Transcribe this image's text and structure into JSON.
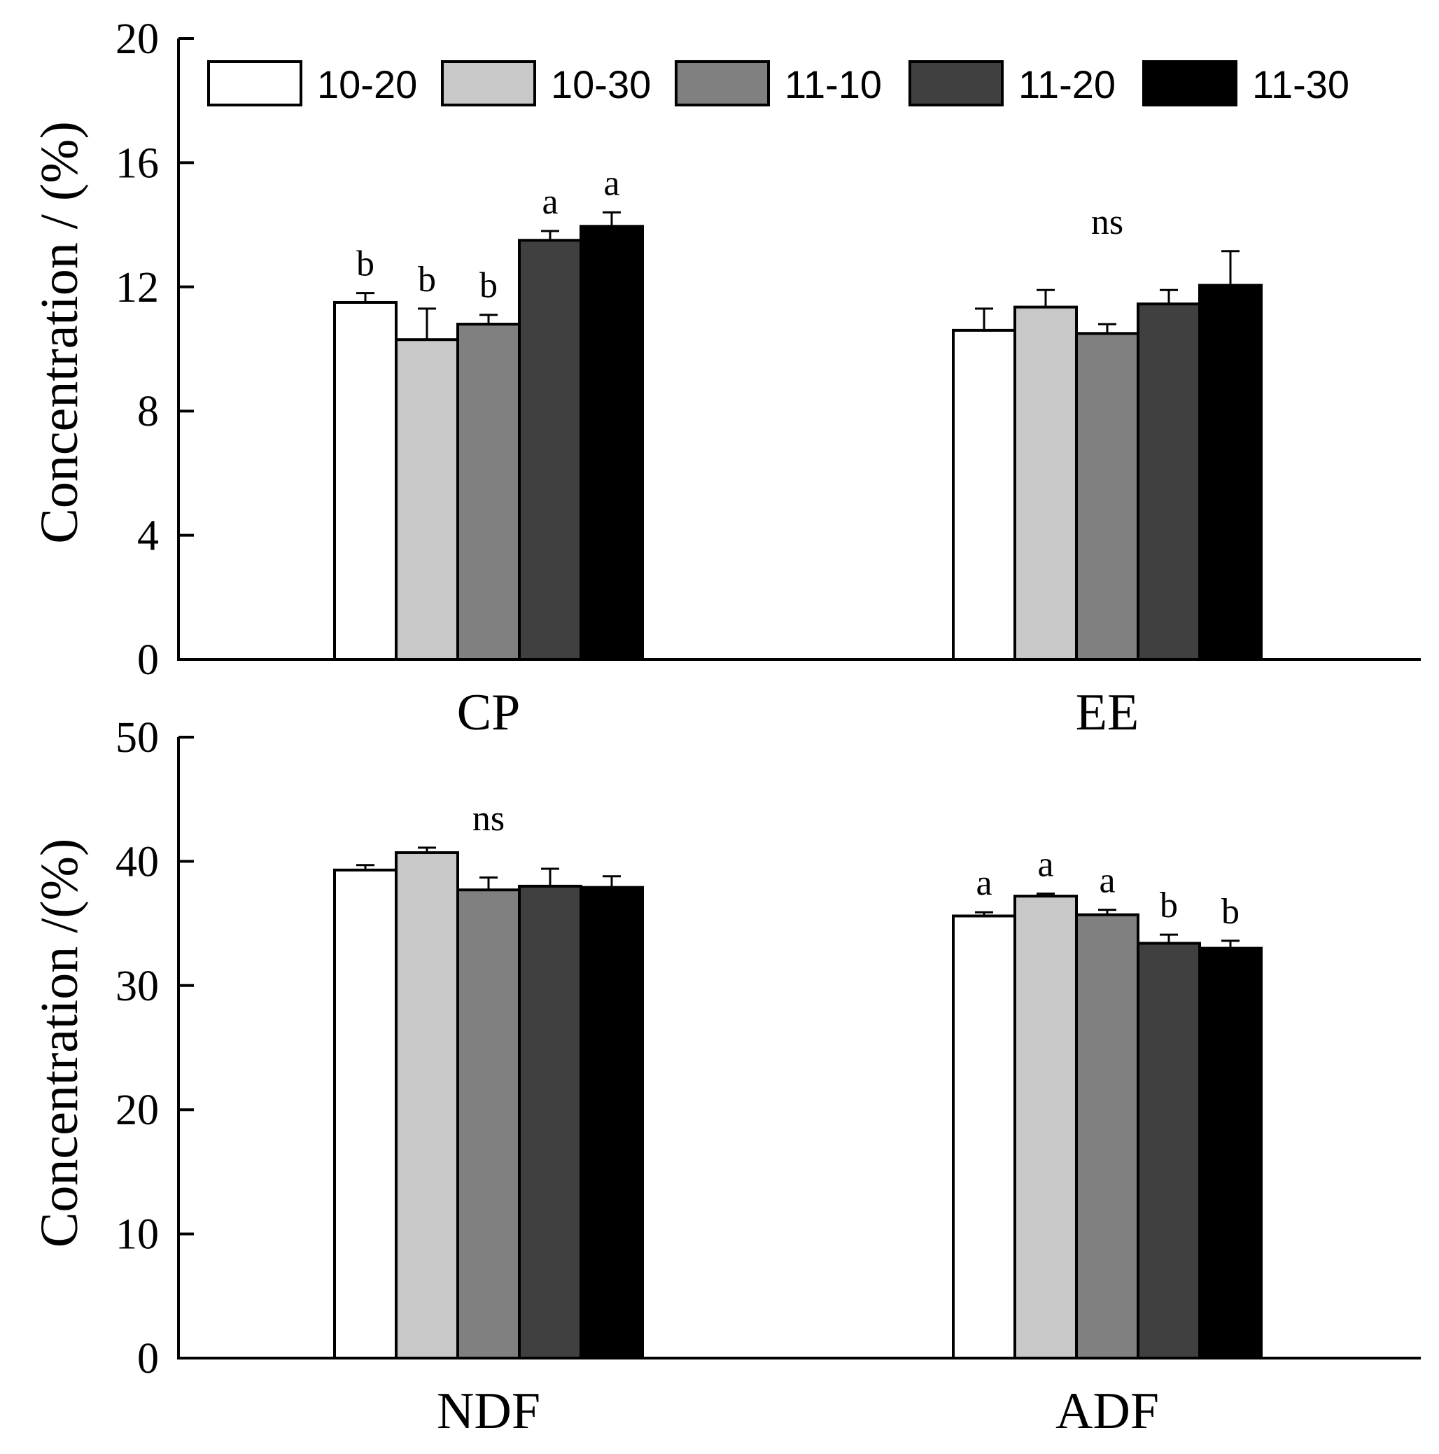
{
  "chart_data": [
    {
      "type": "bar",
      "panel": "top",
      "ylabel": "Concentration / (%)",
      "ylim": [
        0,
        20
      ],
      "yticks": [
        0,
        4,
        8,
        12,
        16,
        20
      ],
      "categories": [
        "CP",
        "EE"
      ],
      "legend": {
        "placement": "top",
        "entries": [
          "10-20",
          "10-30",
          "11-10",
          "11-20",
          "11-30"
        ]
      },
      "series": [
        {
          "name": "10-20",
          "color": "#ffffff",
          "values": [
            11.5,
            10.6
          ],
          "errors": [
            0.3,
            0.7
          ]
        },
        {
          "name": "10-30",
          "color": "#c8c8c8",
          "values": [
            10.3,
            11.35
          ],
          "errors": [
            1.0,
            0.55
          ]
        },
        {
          "name": "11-10",
          "color": "#808080",
          "values": [
            10.8,
            10.5
          ],
          "errors": [
            0.3,
            0.3
          ]
        },
        {
          "name": "11-20",
          "color": "#404040",
          "values": [
            13.5,
            11.45
          ],
          "errors": [
            0.3,
            0.45
          ]
        },
        {
          "name": "11-30",
          "color": "#000000",
          "values": [
            13.95,
            12.05
          ],
          "errors": [
            0.45,
            1.1
          ]
        }
      ],
      "annotations": [
        {
          "category": "CP",
          "labels": [
            "b",
            "b",
            "b",
            "a",
            "a"
          ]
        },
        {
          "category": "EE",
          "group_label": "ns"
        }
      ]
    },
    {
      "type": "bar",
      "panel": "bottom",
      "ylabel": "Concentration /(%)",
      "ylim": [
        0,
        50
      ],
      "yticks": [
        0,
        10,
        20,
        30,
        40,
        50
      ],
      "categories": [
        "NDF",
        "ADF"
      ],
      "series": [
        {
          "name": "10-20",
          "color": "#ffffff",
          "values": [
            39.3,
            35.6
          ],
          "errors": [
            0.4,
            0.3
          ]
        },
        {
          "name": "10-30",
          "color": "#c8c8c8",
          "values": [
            40.7,
            37.2
          ],
          "errors": [
            0.4,
            0.2
          ]
        },
        {
          "name": "11-10",
          "color": "#808080",
          "values": [
            37.7,
            35.7
          ],
          "errors": [
            1.0,
            0.4
          ]
        },
        {
          "name": "11-20",
          "color": "#404040",
          "values": [
            38.0,
            33.4
          ],
          "errors": [
            1.4,
            0.7
          ]
        },
        {
          "name": "11-30",
          "color": "#000000",
          "values": [
            37.9,
            33.0
          ],
          "errors": [
            0.9,
            0.6
          ]
        }
      ],
      "annotations": [
        {
          "category": "NDF",
          "group_label": "ns"
        },
        {
          "category": "ADF",
          "labels": [
            "a",
            "a",
            "a",
            "b",
            "b"
          ]
        }
      ]
    }
  ]
}
